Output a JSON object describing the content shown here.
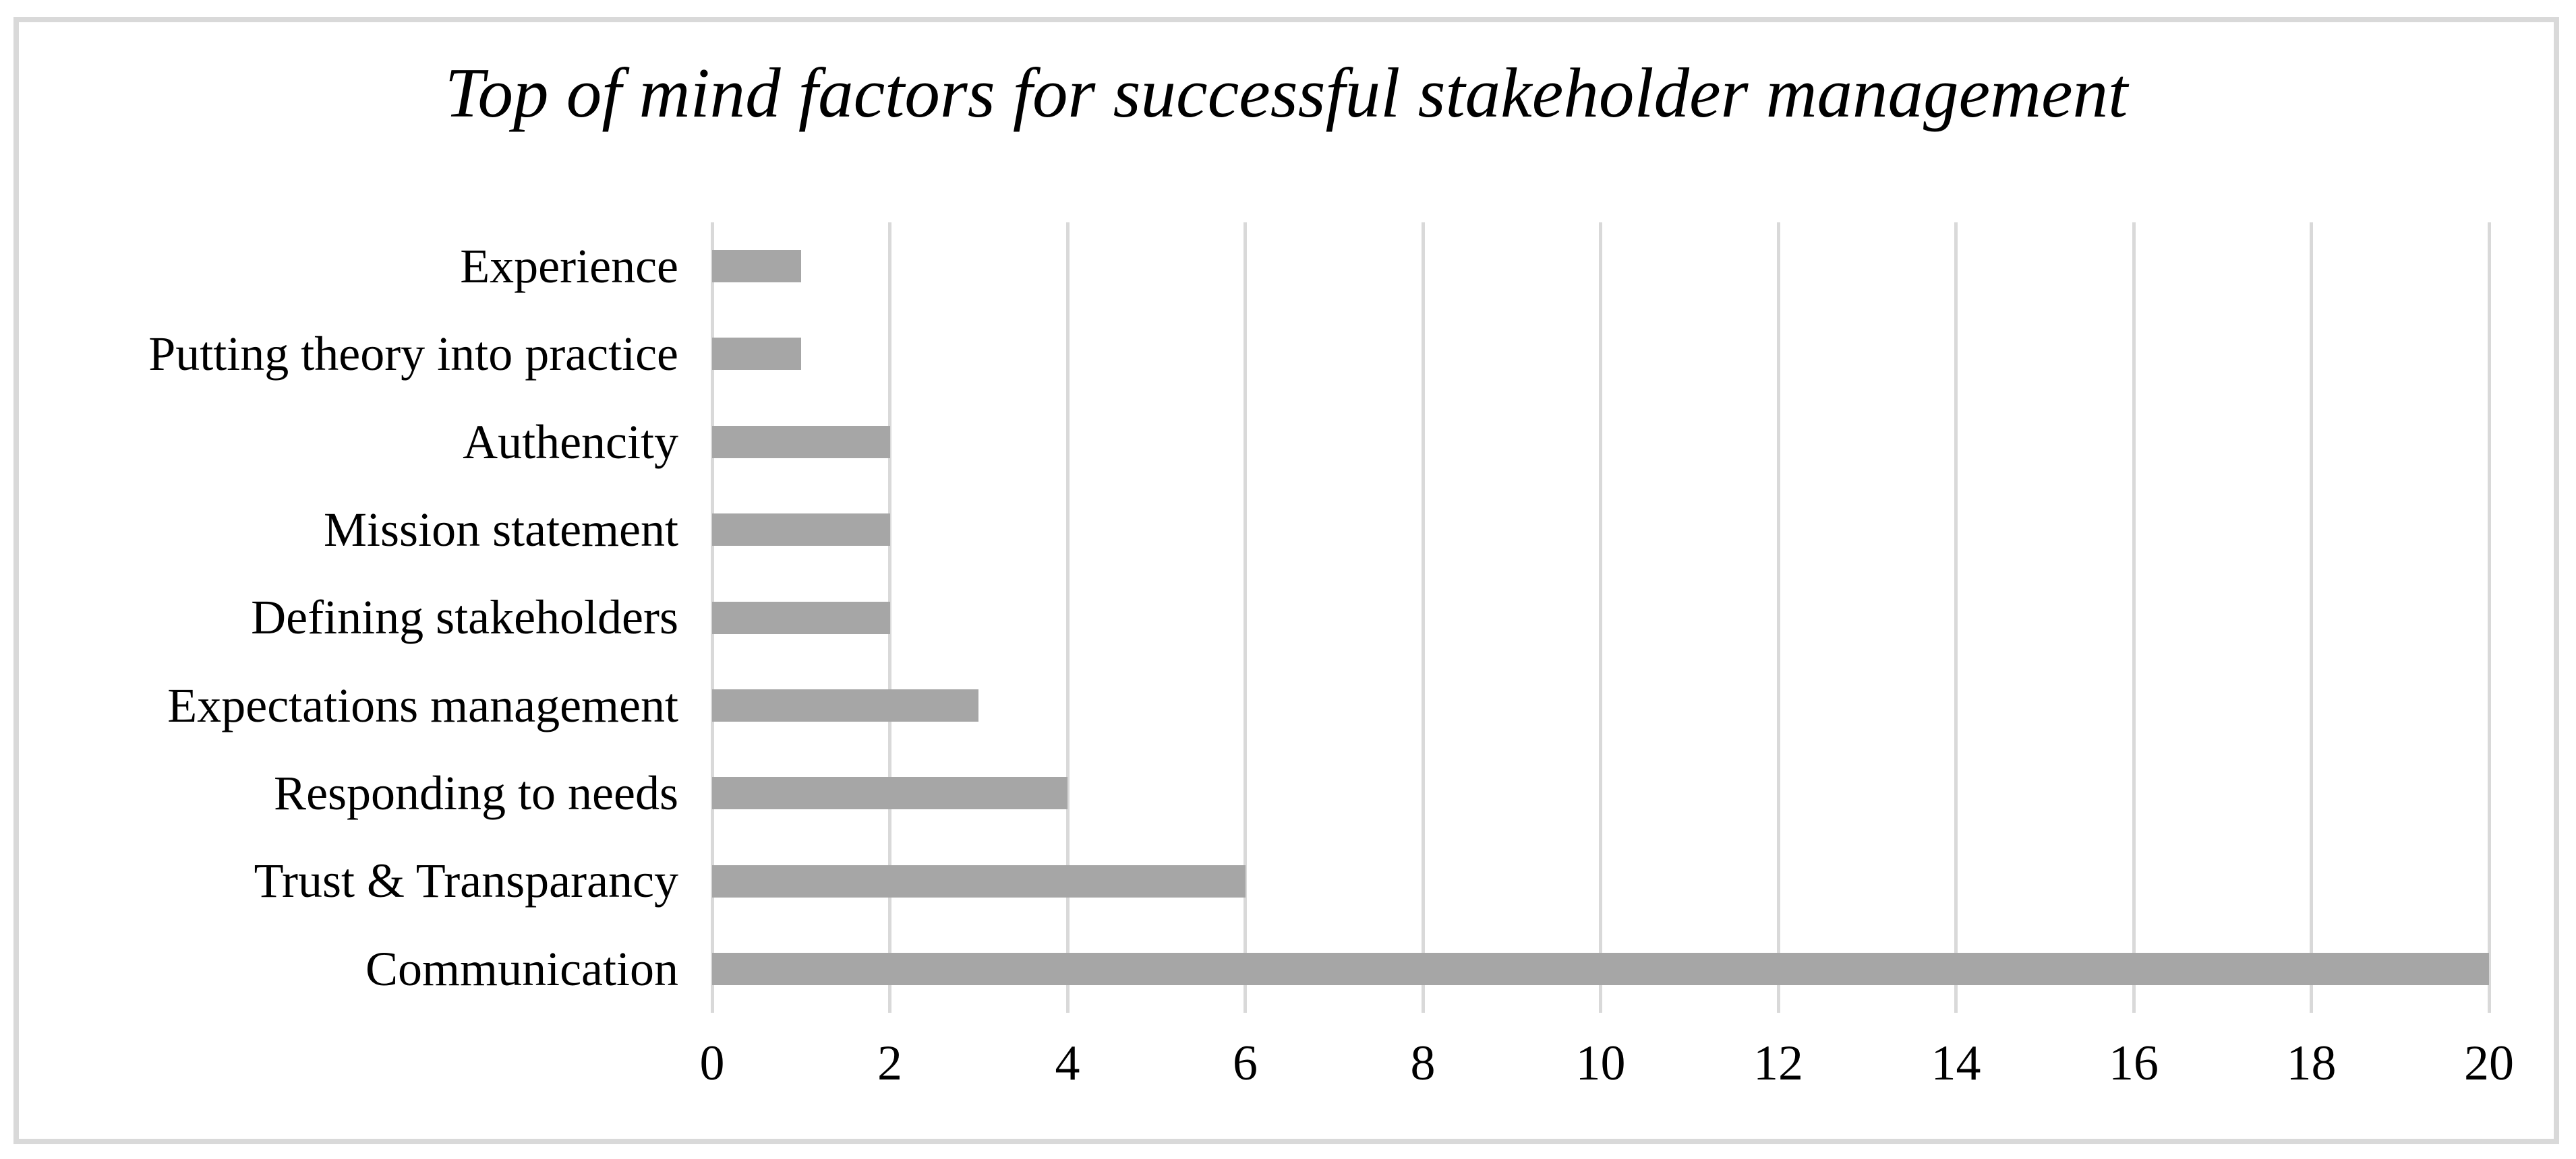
{
  "chart_data": {
    "type": "bar",
    "orientation": "horizontal",
    "title": "Top of mind factors for successful stakeholder management",
    "categories": [
      "Experience",
      "Putting theory into practice",
      "Authencity",
      "Mission statement",
      "Defining stakeholders",
      "Expectations management",
      "Responding to needs",
      "Trust & Transparancy",
      "Communication"
    ],
    "values": [
      1,
      1,
      2,
      2,
      2,
      3,
      4,
      6,
      20
    ],
    "xlim": [
      0,
      20
    ],
    "xticks": [
      0,
      2,
      4,
      6,
      8,
      10,
      12,
      14,
      16,
      18,
      20
    ],
    "grid": "vertical-only",
    "legend": "none",
    "bar_color": "#A6A6A6",
    "gridline_color": "#D9D9D9",
    "frame_border_color": "#D9D9D9",
    "text_color": "#000000",
    "background_color": "#FFFFFF"
  }
}
